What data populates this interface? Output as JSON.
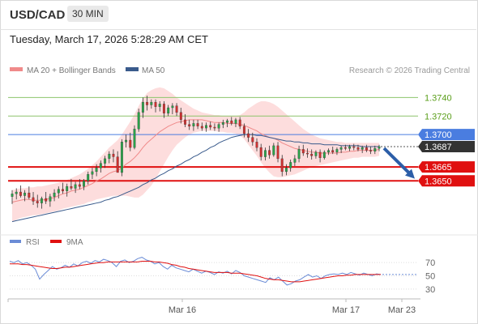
{
  "header": {
    "pair": "USD/CAD",
    "timeframe": "30 MIN"
  },
  "date_line": "Tuesday, March 17, 2026 5:28:29 AM CET",
  "legend": {
    "ma20": "MA 20 + Bollinger Bands",
    "ma50": "MA 50",
    "copyright": "Research © 2026 Trading Central"
  },
  "rsi_legend": {
    "rsi": "RSI",
    "ma9": "9MA"
  },
  "colors": {
    "ma20": "#f08a8a",
    "ma50": "#3a5b8c",
    "bollinger": "#fdd9d9",
    "bull": "#2aa24a",
    "bear": "#cf3030",
    "blue_line": "#4a7de0",
    "red_line": "#e01010",
    "green_line": "#8dc46b",
    "resistance_label": "#5a9e1a",
    "rsi": "#6b8cd6",
    "ma9": "#e01010",
    "arrow": "#2c5ea8"
  },
  "chart_data": [
    {
      "type": "candlestick",
      "title": "USD/CAD 30 MIN",
      "y_ticks": [
        "1.3740",
        "1.3720",
        "1.3700",
        "1.3687",
        "1.3665",
        "1.3650"
      ],
      "x_ticks": [
        "Mar 16",
        "Mar 17",
        "Mar 23"
      ],
      "ylim": [
        1.3603,
        1.3757
      ],
      "levels": [
        {
          "value": 1.374,
          "label": "1.3740",
          "kind": "resistance"
        },
        {
          "value": 1.372,
          "label": "1.3720",
          "kind": "resistance"
        },
        {
          "value": 1.37,
          "label": "1.3700",
          "kind": "pivot"
        },
        {
          "value": 1.3687,
          "label": "1.3687",
          "kind": "last-price"
        },
        {
          "value": 1.3665,
          "label": "1.3665",
          "kind": "support"
        },
        {
          "value": 1.365,
          "label": "1.3650",
          "kind": "support"
        }
      ],
      "candles": [
        {
          "o": 1.3633,
          "h": 1.364,
          "l": 1.3625,
          "c": 1.3636
        },
        {
          "o": 1.3636,
          "h": 1.3642,
          "l": 1.363,
          "c": 1.3638
        },
        {
          "o": 1.3638,
          "h": 1.3645,
          "l": 1.3632,
          "c": 1.3634
        },
        {
          "o": 1.3634,
          "h": 1.364,
          "l": 1.3628,
          "c": 1.3637
        },
        {
          "o": 1.3637,
          "h": 1.3644,
          "l": 1.363,
          "c": 1.3632
        },
        {
          "o": 1.3632,
          "h": 1.3638,
          "l": 1.3624,
          "c": 1.3628
        },
        {
          "o": 1.3628,
          "h": 1.3635,
          "l": 1.3621,
          "c": 1.3626
        },
        {
          "o": 1.3626,
          "h": 1.3633,
          "l": 1.362,
          "c": 1.3631
        },
        {
          "o": 1.3631,
          "h": 1.3638,
          "l": 1.3625,
          "c": 1.3628
        },
        {
          "o": 1.3628,
          "h": 1.3636,
          "l": 1.3622,
          "c": 1.3633
        },
        {
          "o": 1.3633,
          "h": 1.3641,
          "l": 1.3628,
          "c": 1.3637
        },
        {
          "o": 1.3637,
          "h": 1.3644,
          "l": 1.3631,
          "c": 1.3641
        },
        {
          "o": 1.3641,
          "h": 1.3648,
          "l": 1.3636,
          "c": 1.3639
        },
        {
          "o": 1.3639,
          "h": 1.3647,
          "l": 1.3633,
          "c": 1.3644
        },
        {
          "o": 1.3644,
          "h": 1.3652,
          "l": 1.364,
          "c": 1.3642
        },
        {
          "o": 1.3642,
          "h": 1.3649,
          "l": 1.3637,
          "c": 1.3646
        },
        {
          "o": 1.3646,
          "h": 1.3652,
          "l": 1.3641,
          "c": 1.3644
        },
        {
          "o": 1.3644,
          "h": 1.3652,
          "l": 1.364,
          "c": 1.365
        },
        {
          "o": 1.365,
          "h": 1.366,
          "l": 1.3646,
          "c": 1.3657
        },
        {
          "o": 1.3657,
          "h": 1.3664,
          "l": 1.3652,
          "c": 1.366
        },
        {
          "o": 1.366,
          "h": 1.3668,
          "l": 1.3655,
          "c": 1.3664
        },
        {
          "o": 1.3664,
          "h": 1.3672,
          "l": 1.3659,
          "c": 1.3669
        },
        {
          "o": 1.3669,
          "h": 1.3677,
          "l": 1.3664,
          "c": 1.3674
        },
        {
          "o": 1.3674,
          "h": 1.3682,
          "l": 1.3669,
          "c": 1.3679
        },
        {
          "o": 1.3679,
          "h": 1.3684,
          "l": 1.367,
          "c": 1.3676
        },
        {
          "o": 1.3676,
          "h": 1.3682,
          "l": 1.366,
          "c": 1.3659
        },
        {
          "o": 1.3659,
          "h": 1.3695,
          "l": 1.3655,
          "c": 1.3692
        },
        {
          "o": 1.3692,
          "h": 1.37,
          "l": 1.3686,
          "c": 1.3694
        },
        {
          "o": 1.3694,
          "h": 1.3702,
          "l": 1.3682,
          "c": 1.3686
        },
        {
          "o": 1.3686,
          "h": 1.371,
          "l": 1.3684,
          "c": 1.3706
        },
        {
          "o": 1.3706,
          "h": 1.3728,
          "l": 1.3703,
          "c": 1.3724
        },
        {
          "o": 1.3724,
          "h": 1.374,
          "l": 1.3718,
          "c": 1.3735
        },
        {
          "o": 1.3735,
          "h": 1.3742,
          "l": 1.3726,
          "c": 1.3732
        },
        {
          "o": 1.3732,
          "h": 1.3738,
          "l": 1.3728,
          "c": 1.3735
        },
        {
          "o": 1.3735,
          "h": 1.3738,
          "l": 1.3724,
          "c": 1.373
        },
        {
          "o": 1.373,
          "h": 1.3736,
          "l": 1.3725,
          "c": 1.3733
        },
        {
          "o": 1.3733,
          "h": 1.3736,
          "l": 1.3718,
          "c": 1.3723
        },
        {
          "o": 1.3723,
          "h": 1.3732,
          "l": 1.372,
          "c": 1.3729
        },
        {
          "o": 1.3729,
          "h": 1.3734,
          "l": 1.3722,
          "c": 1.3731
        },
        {
          "o": 1.3731,
          "h": 1.3734,
          "l": 1.372,
          "c": 1.3724
        },
        {
          "o": 1.3724,
          "h": 1.3729,
          "l": 1.3712,
          "c": 1.3716
        },
        {
          "o": 1.3716,
          "h": 1.3722,
          "l": 1.3708,
          "c": 1.3711
        },
        {
          "o": 1.3711,
          "h": 1.3716,
          "l": 1.3705,
          "c": 1.3709
        },
        {
          "o": 1.3709,
          "h": 1.3716,
          "l": 1.3704,
          "c": 1.3712
        },
        {
          "o": 1.3712,
          "h": 1.3716,
          "l": 1.3706,
          "c": 1.3709
        },
        {
          "o": 1.3709,
          "h": 1.3713,
          "l": 1.3704,
          "c": 1.3707
        },
        {
          "o": 1.3707,
          "h": 1.3713,
          "l": 1.3703,
          "c": 1.371
        },
        {
          "o": 1.371,
          "h": 1.3714,
          "l": 1.3705,
          "c": 1.3708
        },
        {
          "o": 1.3708,
          "h": 1.3712,
          "l": 1.3704,
          "c": 1.3707
        },
        {
          "o": 1.3707,
          "h": 1.3713,
          "l": 1.3703,
          "c": 1.3711
        },
        {
          "o": 1.3711,
          "h": 1.3716,
          "l": 1.3707,
          "c": 1.3713
        },
        {
          "o": 1.3713,
          "h": 1.3717,
          "l": 1.3708,
          "c": 1.3715
        },
        {
          "o": 1.3715,
          "h": 1.3719,
          "l": 1.371,
          "c": 1.3712
        },
        {
          "o": 1.3712,
          "h": 1.3718,
          "l": 1.3708,
          "c": 1.3716
        },
        {
          "o": 1.3716,
          "h": 1.3719,
          "l": 1.3706,
          "c": 1.3709
        },
        {
          "o": 1.3709,
          "h": 1.3712,
          "l": 1.3697,
          "c": 1.3701
        },
        {
          "o": 1.3701,
          "h": 1.3706,
          "l": 1.3692,
          "c": 1.3697
        },
        {
          "o": 1.3697,
          "h": 1.3702,
          "l": 1.3688,
          "c": 1.3692
        },
        {
          "o": 1.3692,
          "h": 1.3696,
          "l": 1.3682,
          "c": 1.3686
        },
        {
          "o": 1.3686,
          "h": 1.369,
          "l": 1.3672,
          "c": 1.3676
        },
        {
          "o": 1.3676,
          "h": 1.3686,
          "l": 1.3672,
          "c": 1.3683
        },
        {
          "o": 1.3683,
          "h": 1.3688,
          "l": 1.3674,
          "c": 1.3678
        },
        {
          "o": 1.3678,
          "h": 1.3691,
          "l": 1.3676,
          "c": 1.3688
        },
        {
          "o": 1.3688,
          "h": 1.3692,
          "l": 1.367,
          "c": 1.3674
        },
        {
          "o": 1.3674,
          "h": 1.3678,
          "l": 1.3655,
          "c": 1.366
        },
        {
          "o": 1.366,
          "h": 1.3668,
          "l": 1.3656,
          "c": 1.3664
        },
        {
          "o": 1.3664,
          "h": 1.3673,
          "l": 1.366,
          "c": 1.367
        },
        {
          "o": 1.367,
          "h": 1.3678,
          "l": 1.3666,
          "c": 1.3674
        },
        {
          "o": 1.3674,
          "h": 1.3688,
          "l": 1.367,
          "c": 1.3684
        },
        {
          "o": 1.3684,
          "h": 1.3689,
          "l": 1.3677,
          "c": 1.368
        },
        {
          "o": 1.368,
          "h": 1.3685,
          "l": 1.3675,
          "c": 1.3679
        },
        {
          "o": 1.3679,
          "h": 1.3684,
          "l": 1.3673,
          "c": 1.3677
        },
        {
          "o": 1.3677,
          "h": 1.3683,
          "l": 1.3674,
          "c": 1.3681
        },
        {
          "o": 1.3681,
          "h": 1.3684,
          "l": 1.367,
          "c": 1.3675
        },
        {
          "o": 1.3675,
          "h": 1.3683,
          "l": 1.3673,
          "c": 1.3681
        },
        {
          "o": 1.3681,
          "h": 1.3685,
          "l": 1.3678,
          "c": 1.3683
        },
        {
          "o": 1.3683,
          "h": 1.3687,
          "l": 1.3679,
          "c": 1.3681
        },
        {
          "o": 1.3681,
          "h": 1.3686,
          "l": 1.3678,
          "c": 1.3684
        },
        {
          "o": 1.3684,
          "h": 1.3688,
          "l": 1.368,
          "c": 1.3686
        },
        {
          "o": 1.3686,
          "h": 1.3689,
          "l": 1.3683,
          "c": 1.3685
        },
        {
          "o": 1.3685,
          "h": 1.3689,
          "l": 1.3682,
          "c": 1.3687
        },
        {
          "o": 1.3687,
          "h": 1.369,
          "l": 1.3683,
          "c": 1.3686
        },
        {
          "o": 1.3686,
          "h": 1.3689,
          "l": 1.3682,
          "c": 1.3684
        },
        {
          "o": 1.3684,
          "h": 1.3688,
          "l": 1.368,
          "c": 1.3686
        },
        {
          "o": 1.3686,
          "h": 1.3689,
          "l": 1.3681,
          "c": 1.3683
        },
        {
          "o": 1.3683,
          "h": 1.3687,
          "l": 1.3679,
          "c": 1.3682
        },
        {
          "o": 1.3682,
          "h": 1.3688,
          "l": 1.3679,
          "c": 1.3685
        },
        {
          "o": 1.3685,
          "h": 1.3689,
          "l": 1.3682,
          "c": 1.3687
        }
      ],
      "ma20": [
        1.3627,
        1.3628,
        1.3629,
        1.363,
        1.363,
        1.3629,
        1.3629,
        1.3629,
        1.363,
        1.3631,
        1.3632,
        1.3634,
        1.3636,
        1.3637,
        1.3639,
        1.364,
        1.3641,
        1.3643,
        1.3645,
        1.3647,
        1.365,
        1.3652,
        1.3655,
        1.3658,
        1.366,
        1.3661,
        1.3664,
        1.3668,
        1.3671,
        1.3675,
        1.368,
        1.3686,
        1.3691,
        1.3695,
        1.3699,
        1.3703,
        1.3706,
        1.3709,
        1.3711,
        1.3713,
        1.3714,
        1.3715,
        1.3716,
        1.3716,
        1.3716,
        1.3716,
        1.3715,
        1.3714,
        1.3713,
        1.3713,
        1.3713,
        1.3712,
        1.3712,
        1.3712,
        1.3711,
        1.371,
        1.3708,
        1.3706,
        1.3704,
        1.3701,
        1.3699,
        1.3697,
        1.3696,
        1.3694,
        1.3691,
        1.3689,
        1.3687,
        1.3685,
        1.3684,
        1.3683,
        1.3682,
        1.3681,
        1.3681,
        1.368,
        1.368,
        1.368,
        1.368,
        1.368,
        1.3681,
        1.3681,
        1.3682,
        1.3682,
        1.3683,
        1.3683,
        1.3683,
        1.3683,
        1.3683,
        1.3684
      ],
      "bb_upper": [
        1.364,
        1.3641,
        1.3642,
        1.3642,
        1.3643,
        1.3643,
        1.3644,
        1.3644,
        1.3645,
        1.3646,
        1.3647,
        1.3648,
        1.365,
        1.3651,
        1.3653,
        1.3655,
        1.3657,
        1.366,
        1.3663,
        1.3667,
        1.3671,
        1.3676,
        1.3681,
        1.3686,
        1.369,
        1.3694,
        1.37,
        1.3707,
        1.3714,
        1.3722,
        1.3731,
        1.3739,
        1.3745,
        1.3748,
        1.375,
        1.3751,
        1.375,
        1.3747,
        1.3744,
        1.374,
        1.3737,
        1.3734,
        1.3731,
        1.3728,
        1.3726,
        1.3724,
        1.3723,
        1.3722,
        1.3721,
        1.3721,
        1.372,
        1.372,
        1.372,
        1.372,
        1.3721,
        1.3724,
        1.3728,
        1.3731,
        1.3734,
        1.3736,
        1.3736,
        1.3735,
        1.3733,
        1.373,
        1.3726,
        1.3722,
        1.3718,
        1.3714,
        1.371,
        1.3706,
        1.3703,
        1.37,
        1.3698,
        1.3696,
        1.3695,
        1.3694,
        1.3693,
        1.3692,
        1.3692,
        1.3691,
        1.3691,
        1.3691,
        1.3691,
        1.3691,
        1.3691,
        1.3691,
        1.3691,
        1.3691
      ],
      "bb_lower": [
        1.3606,
        1.3608,
        1.361,
        1.3611,
        1.3612,
        1.3613,
        1.3613,
        1.3614,
        1.3615,
        1.3616,
        1.3617,
        1.3618,
        1.362,
        1.3621,
        1.3622,
        1.3623,
        1.3624,
        1.3625,
        1.3627,
        1.3628,
        1.363,
        1.3631,
        1.3632,
        1.3633,
        1.3634,
        1.3634,
        1.3634,
        1.3634,
        1.3633,
        1.3632,
        1.3632,
        1.3635,
        1.364,
        1.3645,
        1.3652,
        1.366,
        1.3668,
        1.3676,
        1.3683,
        1.3689,
        1.3693,
        1.3697,
        1.37,
        1.3702,
        1.3703,
        1.3704,
        1.3704,
        1.3704,
        1.3704,
        1.3703,
        1.3703,
        1.3702,
        1.3702,
        1.3701,
        1.3699,
        1.3695,
        1.3689,
        1.3683,
        1.3677,
        1.367,
        1.3664,
        1.3659,
        1.3655,
        1.3654,
        1.3654,
        1.3655,
        1.3656,
        1.3657,
        1.3659,
        1.3661,
        1.3663,
        1.3665,
        1.3666,
        1.3667,
        1.3668,
        1.3669,
        1.367,
        1.3671,
        1.3672,
        1.3673,
        1.3674,
        1.3675,
        1.3675,
        1.3676,
        1.3676,
        1.3676,
        1.3676,
        1.3677
      ],
      "ma50": [
        1.3606,
        1.3607,
        1.3608,
        1.3609,
        1.361,
        1.3611,
        1.3612,
        1.3613,
        1.3614,
        1.3615,
        1.3616,
        1.3617,
        1.3618,
        1.3619,
        1.362,
        1.3621,
        1.3622,
        1.3623,
        1.3624,
        1.3625,
        1.3626,
        1.3627,
        1.3629,
        1.363,
        1.3632,
        1.3633,
        1.3635,
        1.3637,
        1.3639,
        1.3641,
        1.3643,
        1.3646,
        1.3648,
        1.3651,
        1.3653,
        1.3656,
        1.3658,
        1.3661,
        1.3663,
        1.3666,
        1.3668,
        1.3671,
        1.3673,
        1.3676,
        1.3678,
        1.3681,
        1.3683,
        1.3686,
        1.3688,
        1.3691,
        1.3693,
        1.3695,
        1.3697,
        1.3698,
        1.3699,
        1.37,
        1.37,
        1.37,
        1.3699,
        1.3699,
        1.3698,
        1.3697,
        1.3696,
        1.3695,
        1.3694,
        1.3693,
        1.3693,
        1.3692,
        1.3692,
        1.3691,
        1.3691,
        1.369,
        1.369,
        1.369,
        1.3689,
        1.3689,
        1.3689,
        1.3689,
        1.3688,
        1.3688,
        1.3688,
        1.3688,
        1.3688,
        1.3687,
        1.3687,
        1.3687,
        1.3687,
        1.3687
      ]
    },
    {
      "type": "line",
      "series_names": [
        "RSI",
        "9MA"
      ],
      "y_ticks": [
        "70",
        "50",
        "30"
      ],
      "ylim": [
        20,
        80
      ],
      "rsi": [
        72,
        70,
        73,
        68,
        70,
        66,
        60,
        45,
        52,
        58,
        64,
        60,
        62,
        66,
        63,
        68,
        65,
        70,
        72,
        69,
        73,
        71,
        75,
        73,
        70,
        64,
        72,
        74,
        70,
        72,
        76,
        78,
        74,
        72,
        68,
        70,
        64,
        60,
        66,
        62,
        60,
        58,
        56,
        60,
        57,
        54,
        57,
        55,
        52,
        56,
        54,
        57,
        53,
        58,
        55,
        50,
        48,
        46,
        44,
        42,
        40,
        47,
        44,
        48,
        42,
        36,
        38,
        42,
        44,
        48,
        52,
        48,
        50,
        46,
        50,
        52,
        53,
        52,
        54,
        52,
        55,
        53,
        51,
        54,
        52,
        50,
        53,
        52
      ],
      "ma9": [
        68,
        68,
        68,
        67,
        67,
        66,
        65,
        64,
        63,
        62,
        61,
        61,
        62,
        63,
        63,
        64,
        65,
        66,
        67,
        68,
        69,
        70,
        70,
        71,
        71,
        71,
        71,
        71,
        71,
        71,
        71,
        72,
        72,
        72,
        71,
        71,
        70,
        69,
        67,
        66,
        64,
        63,
        61,
        60,
        59,
        58,
        57,
        56,
        55,
        55,
        55,
        55,
        54,
        54,
        54,
        53,
        52,
        51,
        50,
        48,
        46,
        45,
        44,
        44,
        43,
        42,
        41,
        41,
        41,
        42,
        43,
        44,
        45,
        46,
        47,
        48,
        49,
        50,
        50,
        51,
        51,
        52,
        52,
        52,
        52,
        52,
        52,
        52
      ]
    }
  ]
}
